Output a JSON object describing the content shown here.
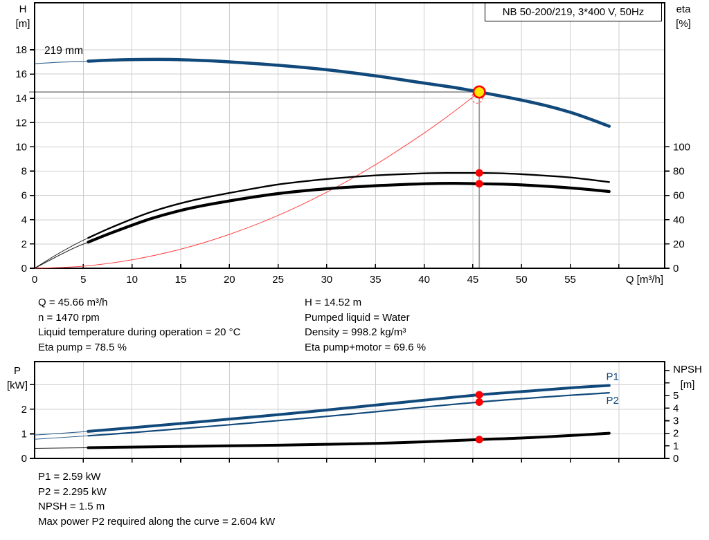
{
  "header": {
    "title": "NB 50-200/219, 3*400 V, 50Hz"
  },
  "info_top": {
    "left": [
      "Q = 45.66 m³/h",
      "n = 1470 rpm",
      "Liquid temperature during operation = 20 °C",
      "Eta pump = 78.5 %"
    ],
    "right": [
      "H = 14.52 m",
      "Pumped liquid = Water",
      "Density = 998.2 kg/m³",
      "Eta pump+motor = 69.6 %"
    ]
  },
  "info_bottom": [
    "P1 = 2.59 kW",
    "P2 = 2.295 kW",
    "NPSH = 1.5 m",
    "Max power P2 required along the curve = 2.604 kW"
  ],
  "colors": {
    "curve_blue": "#11497b",
    "curve_black": "#000000",
    "system_red": "#ff4040",
    "dot_red": "#ff0000",
    "duty_yellow": "#ffe600",
    "grid": "#cdcdcd",
    "crosshair": "#9a9a9a",
    "frame": "#000000"
  },
  "chart_data": [
    {
      "type": "line",
      "title": "QH and efficiency curves",
      "impeller_label": "219 mm",
      "x_axis": {
        "label": "Q [m³/h]",
        "min": 0,
        "max": 64.7,
        "ticks": [
          0,
          5,
          10,
          15,
          20,
          25,
          30,
          35,
          40,
          45,
          50,
          55
        ],
        "extra_ticks": [
          60
        ]
      },
      "y_left": {
        "label": [
          "H",
          "[m]"
        ],
        "min": 0,
        "max": 21.87,
        "ticks": [
          0,
          2,
          4,
          6,
          8,
          10,
          12,
          14,
          16,
          18
        ],
        "extra_ticks": []
      },
      "y_right": {
        "label": [
          "eta",
          "[%]"
        ],
        "min": 0,
        "max": 218.7,
        "ticks": [
          0,
          20,
          40,
          60,
          80,
          100
        ],
        "extra_ticks": []
      },
      "crosshair": {
        "q": 45.66,
        "value": 14.52,
        "axis": "left"
      },
      "series": [
        {
          "name": "system-curve",
          "axis": "left",
          "color": "#ff4040",
          "width": 1,
          "points": [
            [
              0,
              0
            ],
            [
              5,
              0.17
            ],
            [
              10,
              0.7
            ],
            [
              15,
              1.57
            ],
            [
              20,
              2.79
            ],
            [
              25,
              4.35
            ],
            [
              30,
              6.27
            ],
            [
              35,
              8.53
            ],
            [
              40,
              11.14
            ],
            [
              43,
              12.87
            ],
            [
              45.66,
              14.52
            ]
          ]
        },
        {
          "name": "qh-curve",
          "axis": "left",
          "color": "#11497b",
          "width": 4.5,
          "thin_width": 1.1,
          "thick_from": 5.5,
          "points": [
            [
              0,
              16.85
            ],
            [
              2,
              16.95
            ],
            [
              4,
              17.02
            ],
            [
              5.5,
              17.06
            ],
            [
              8,
              17.15
            ],
            [
              11,
              17.2
            ],
            [
              14,
              17.2
            ],
            [
              17,
              17.12
            ],
            [
              20,
              17.0
            ],
            [
              25,
              16.72
            ],
            [
              30,
              16.35
            ],
            [
              35,
              15.85
            ],
            [
              40,
              15.25
            ],
            [
              43,
              14.9
            ],
            [
              45.66,
              14.52
            ],
            [
              50,
              13.85
            ],
            [
              52.5,
              13.4
            ],
            [
              55,
              12.85
            ],
            [
              57,
              12.3
            ],
            [
              59,
              11.7
            ]
          ]
        },
        {
          "name": "eta-pump-curve",
          "axis": "right",
          "color": "#000000",
          "width": 2.4,
          "thin_width": 1,
          "thick_from": 5.5,
          "points": [
            [
              0,
              0
            ],
            [
              2,
              10
            ],
            [
              4,
              19
            ],
            [
              5.5,
              25
            ],
            [
              8,
              34
            ],
            [
              12,
              46.5
            ],
            [
              16,
              55.5
            ],
            [
              20,
              62
            ],
            [
              25,
              69
            ],
            [
              30,
              73.5
            ],
            [
              35,
              76.5
            ],
            [
              40,
              78.2
            ],
            [
              43,
              78.5
            ],
            [
              45.66,
              78.5
            ],
            [
              48,
              78.2
            ],
            [
              50,
              77.5
            ],
            [
              53,
              76
            ],
            [
              55,
              74.8
            ],
            [
              57,
              73
            ],
            [
              59,
              71
            ]
          ]
        },
        {
          "name": "eta-pump-motor-curve",
          "axis": "right",
          "color": "#000000",
          "width": 4.2,
          "thin_width": 1.1,
          "thick_from": 5.5,
          "points": [
            [
              0,
              0
            ],
            [
              2,
              8.5
            ],
            [
              4,
              16.5
            ],
            [
              5.5,
              21.5
            ],
            [
              8,
              29.5
            ],
            [
              12,
              41
            ],
            [
              16,
              49.5
            ],
            [
              20,
              55.5
            ],
            [
              25,
              61.5
            ],
            [
              30,
              65.5
            ],
            [
              35,
              68
            ],
            [
              40,
              69.6
            ],
            [
              43,
              70
            ],
            [
              45.66,
              69.6
            ],
            [
              48,
              69.3
            ],
            [
              50,
              68.7
            ],
            [
              53,
              67.3
            ],
            [
              55,
              66.2
            ],
            [
              57,
              64.8
            ],
            [
              59,
              63.2
            ]
          ]
        }
      ],
      "markers": [
        {
          "name": "requested-duty-marker",
          "type": "dashed",
          "axis": "left",
          "q": 45.45,
          "v": 14.05
        },
        {
          "name": "duty-point-marker",
          "type": "duty",
          "axis": "left",
          "q": 45.66,
          "v": 14.52
        },
        {
          "name": "eta-pump-duty-dot",
          "type": "dot",
          "axis": "right",
          "q": 45.66,
          "v": 78.5
        },
        {
          "name": "eta-pump-motor-duty-dot",
          "type": "dot",
          "axis": "right",
          "q": 45.66,
          "v": 69.6
        }
      ]
    },
    {
      "type": "line",
      "title": "Power and NPSH curves",
      "x_axis": {
        "label": "",
        "min": 0,
        "max": 64.7,
        "ticks": [],
        "extra_ticks": [
          5,
          10,
          15,
          20,
          25,
          30,
          35,
          40,
          45,
          50,
          55,
          60
        ]
      },
      "y_left": {
        "label": [
          "P",
          "[kW]"
        ],
        "min": 0,
        "max": 3.94,
        "ticks": [
          0,
          1,
          2
        ],
        "extra_ticks": [
          3
        ]
      },
      "y_right": {
        "label": [
          "NPSH",
          "[m]"
        ],
        "min": 0,
        "max": 7.7,
        "ticks": [
          0,
          1,
          2,
          3,
          4,
          5
        ],
        "extra_ticks": [
          6,
          7
        ]
      },
      "series": [
        {
          "name": "p1-curve",
          "axis": "left",
          "color": "#11497b",
          "width": 4,
          "thin_width": 1.1,
          "thick_from": 5.5,
          "label": "P1",
          "points": [
            [
              0,
              0.95
            ],
            [
              5.5,
              1.1
            ],
            [
              10,
              1.25
            ],
            [
              15,
              1.42
            ],
            [
              20,
              1.6
            ],
            [
              25,
              1.78
            ],
            [
              30,
              1.97
            ],
            [
              35,
              2.17
            ],
            [
              40,
              2.37
            ],
            [
              45.66,
              2.59
            ],
            [
              50,
              2.72
            ],
            [
              55,
              2.87
            ],
            [
              59,
              2.97
            ]
          ]
        },
        {
          "name": "p2-curve",
          "axis": "left",
          "color": "#11497b",
          "width": 2.2,
          "thin_width": 1,
          "thick_from": 5.5,
          "label": "P2",
          "points": [
            [
              0,
              0.78
            ],
            [
              5.5,
              0.92
            ],
            [
              10,
              1.05
            ],
            [
              15,
              1.21
            ],
            [
              20,
              1.37
            ],
            [
              25,
              1.54
            ],
            [
              30,
              1.71
            ],
            [
              35,
              1.9
            ],
            [
              40,
              2.09
            ],
            [
              45.66,
              2.295
            ],
            [
              50,
              2.43
            ],
            [
              55,
              2.57
            ],
            [
              59,
              2.67
            ]
          ]
        },
        {
          "name": "npsh-curve",
          "axis": "right",
          "color": "#000000",
          "width": 4,
          "thin_width": 1,
          "thick_from": 5.5,
          "points": [
            [
              0,
              0.8
            ],
            [
              5.5,
              0.85
            ],
            [
              10,
              0.9
            ],
            [
              15,
              0.95
            ],
            [
              20,
              1.0
            ],
            [
              25,
              1.05
            ],
            [
              30,
              1.12
            ],
            [
              35,
              1.2
            ],
            [
              40,
              1.32
            ],
            [
              45.66,
              1.5
            ],
            [
              50,
              1.62
            ],
            [
              55,
              1.82
            ],
            [
              59,
              2.0
            ]
          ]
        }
      ],
      "markers": [
        {
          "name": "p1-duty-dot",
          "type": "dot",
          "axis": "left",
          "q": 45.66,
          "v": 2.59
        },
        {
          "name": "p2-duty-dot",
          "type": "dot",
          "axis": "left",
          "q": 45.66,
          "v": 2.295
        },
        {
          "name": "npsh-duty-dot",
          "type": "dot",
          "axis": "right",
          "q": 45.66,
          "v": 1.5
        }
      ]
    }
  ]
}
